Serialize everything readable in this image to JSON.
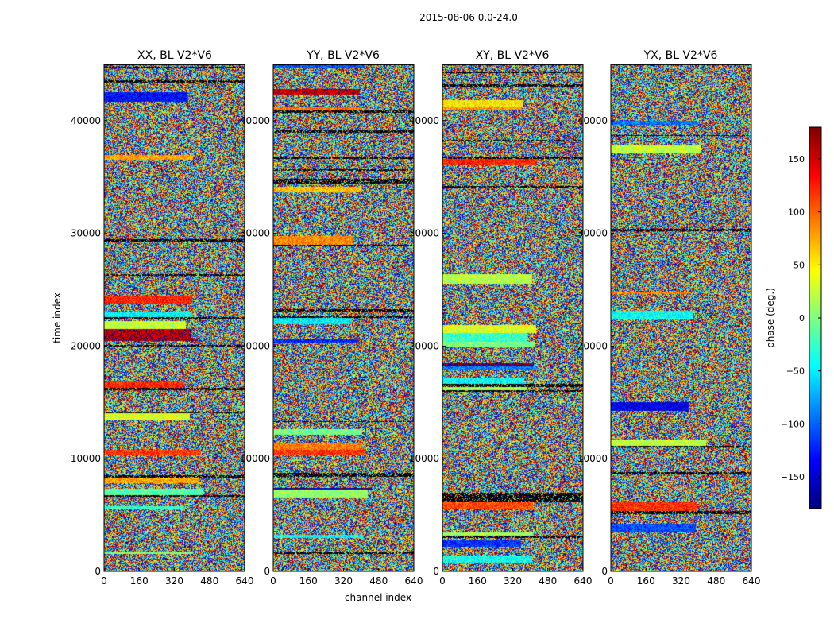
{
  "figure": {
    "suptitle": "2015-08-06 0.0-24.0"
  },
  "chart_data": {
    "type": "heatmap",
    "title": "2015-08-06 0.0-24.0",
    "xlabel": "channel index",
    "ylabel": "time index",
    "x_ticks": [
      "0",
      "160",
      "320",
      "480",
      "640"
    ],
    "y_ticks": [
      "0",
      "10000",
      "20000",
      "30000",
      "40000"
    ],
    "xlim": [
      0,
      640
    ],
    "ylim": [
      0,
      45000
    ],
    "panels": [
      {
        "title": "XX, BL V2*V6",
        "pol": "XX"
      },
      {
        "title": "YY, BL V2*V6",
        "pol": "YY"
      },
      {
        "title": "XY, BL V2*V6",
        "pol": "XY"
      },
      {
        "title": "YX, BL V2*V6",
        "pol": "YX"
      }
    ],
    "colorbar": {
      "label": "phase (deg.)",
      "range": [
        -180,
        180
      ],
      "ticks": [
        "−150",
        "−100",
        "−50",
        "0",
        "50",
        "100",
        "150"
      ],
      "tick_values": [
        -150,
        -100,
        -50,
        0,
        50,
        100,
        150
      ],
      "colormap": "jet"
    }
  }
}
